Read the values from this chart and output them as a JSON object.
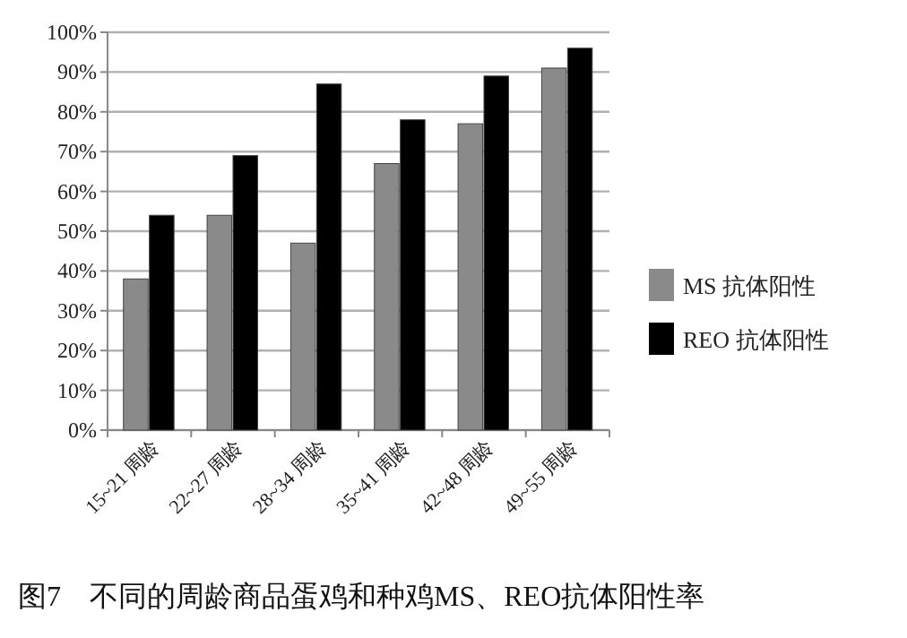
{
  "chart_data": {
    "type": "bar",
    "categories": [
      "15~21 周龄",
      "22~27 周龄",
      "28~34 周龄",
      "35~41 周龄",
      "42~48 周龄",
      "49~55 周龄"
    ],
    "series": [
      {
        "name": "MS 抗体阳性",
        "color": "#8a8a8a",
        "values": [
          38,
          54,
          47,
          67,
          77,
          91
        ]
      },
      {
        "name": "REO 抗体阳性",
        "color": "#000000",
        "values": [
          54,
          69,
          87,
          78,
          89,
          96
        ]
      }
    ],
    "ylim": [
      0,
      100
    ],
    "yticks": [
      {
        "value": 0,
        "label": "0%"
      },
      {
        "value": 10,
        "label": "10%"
      },
      {
        "value": 20,
        "label": "20%"
      },
      {
        "value": 30,
        "label": "30%"
      },
      {
        "value": 40,
        "label": "40%"
      },
      {
        "value": 50,
        "label": "50%"
      },
      {
        "value": 60,
        "label": "60%"
      },
      {
        "value": 70,
        "label": "70%"
      },
      {
        "value": 80,
        "label": "80%"
      },
      {
        "value": 90,
        "label": "90%"
      },
      {
        "value": 100,
        "label": "100%"
      }
    ],
    "grid": "y",
    "legend": "right",
    "annotations": [
      "图7　不同的周龄商品蛋鸡和种鸡MS、REO抗体阳性率"
    ]
  }
}
